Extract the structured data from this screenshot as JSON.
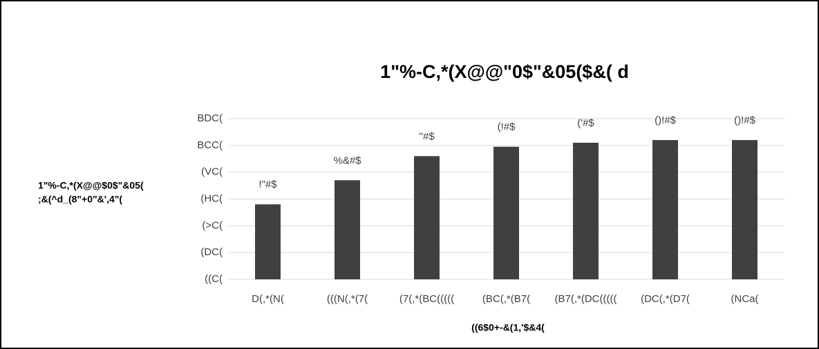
{
  "chart_data": {
    "type": "bar",
    "title": "1\"%-C,*(X@@\"0$\"&05($&( d",
    "y_label": [
      "1\"%-C,*(X@@$0$\"&05(",
      ";&(^d_(8\"+0\"&',4\"("
    ],
    "x_label": "((6$0+-&(1,'$&4(",
    "categories": [
      "D(,*(N(",
      "(((N(,*(7(",
      "(7(,*(BC(((((",
      "(BC(,*(B7(",
      "(B7(,*(DC(((((",
      "(DC(,*(D7(",
      "(NCa("
    ],
    "values": [
      56,
      74,
      92,
      99,
      102,
      104,
      104
    ],
    "value_labels": [
      "!\"#$",
      "%&#$",
      "''#$",
      "(!#$",
      "('#$",
      "()!#$",
      "()!#$"
    ],
    "color": "#404040",
    "ylim": [
      0,
      120
    ],
    "yticks": [
      {
        "value": 0,
        "label": "((C("
      },
      {
        "value": 20,
        "label": "(DC("
      },
      {
        "value": 40,
        "label": "(>C("
      },
      {
        "value": 60,
        "label": "(HC("
      },
      {
        "value": 80,
        "label": "(VC("
      },
      {
        "value": 100,
        "label": "BCC("
      },
      {
        "value": 120,
        "label": "BDC("
      }
    ],
    "grid": true
  }
}
